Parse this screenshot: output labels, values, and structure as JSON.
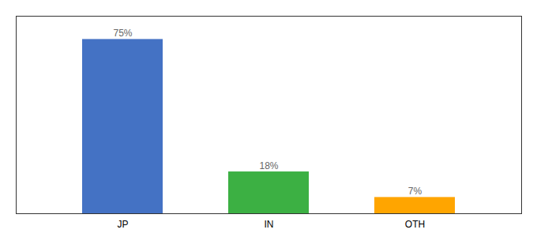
{
  "chart_data": {
    "type": "bar",
    "categories": [
      "JP",
      "IN",
      "OTH"
    ],
    "values": [
      75,
      18,
      7
    ],
    "value_labels": [
      "75%",
      "18%",
      "7%"
    ],
    "colors": [
      "#4472C4",
      "#3CB043",
      "#FFA500"
    ],
    "ylim": [
      0,
      85
    ],
    "yticks": [],
    "data_labels": true,
    "tick_labels": "x"
  }
}
